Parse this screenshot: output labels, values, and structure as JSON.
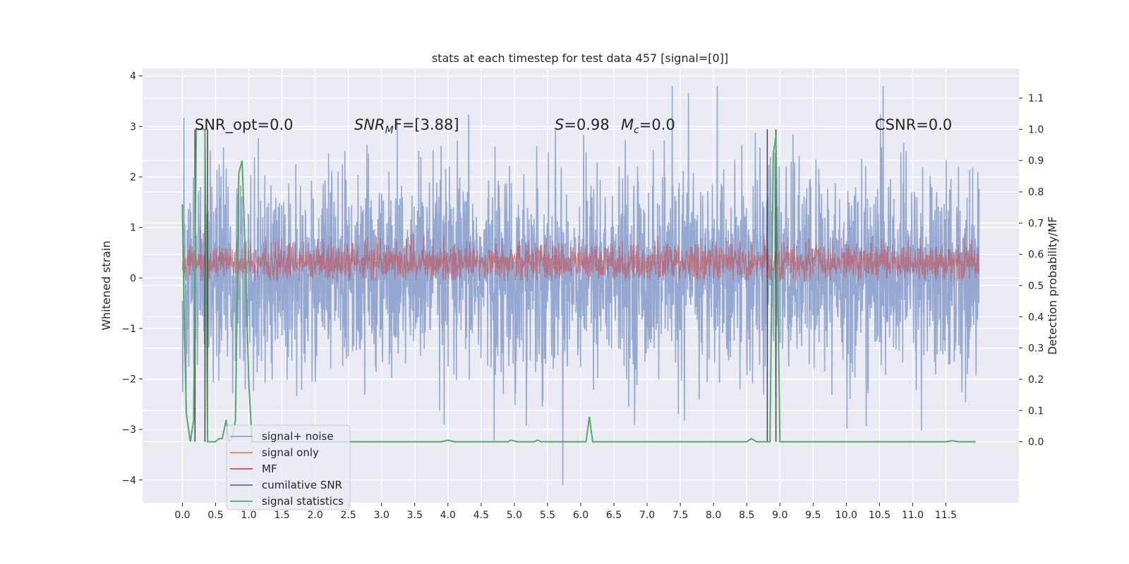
{
  "chart_data": {
    "type": "line",
    "title": "stats at each timestep for test data 457 [signal=[0]]",
    "xlabel": "",
    "ylabel": "Whitened strain",
    "y2label": "Detection probability/MF",
    "xlim": [
      -0.6,
      12.6
    ],
    "ylim": [
      -4.45,
      4.15
    ],
    "y2lim": [
      -0.195,
      1.195
    ],
    "x_ticks": [
      "0.0",
      "0.5",
      "1.0",
      "1.5",
      "2.0",
      "2.5",
      "3.0",
      "3.5",
      "4.0",
      "4.5",
      "5.0",
      "5.5",
      "6.0",
      "6.5",
      "7.0",
      "7.5",
      "8.0",
      "8.5",
      "9.0",
      "9.5",
      "10.0",
      "10.5",
      "11.0",
      "11.5"
    ],
    "y_ticks": [
      4,
      3,
      2,
      1,
      0,
      -1,
      -2,
      -3,
      -4
    ],
    "y_tick_labels": [
      "4",
      "3",
      "2",
      "1",
      "0",
      "−1",
      "−2",
      "−3",
      "−4"
    ],
    "y2_ticks": [
      1.1,
      1.0,
      0.9,
      0.8,
      0.7,
      0.6,
      0.5,
      0.4,
      0.3,
      0.2,
      0.1,
      0.0
    ],
    "y2_tick_labels": [
      "1.1",
      "1.0",
      "0.9",
      "0.8",
      "0.7",
      "0.6",
      "0.5",
      "0.4",
      "0.3",
      "0.2",
      "0.1",
      "0.0"
    ],
    "grid": true,
    "legend_position": "lower-left",
    "annotations": {
      "snr_opt": "SNR_opt=0.0",
      "snr_mf_sym": "SNR",
      "snr_mf_sub": "M",
      "snr_mf_rest": "F=[3.88]",
      "s_sym": "S",
      "s_rest": "=0.98",
      "mc_sym": "M",
      "mc_sub": "c",
      "mc_rest": "=0.0",
      "csnr": "CSNR=0.0"
    },
    "series": [
      {
        "name": "signal+ noise",
        "color": "#8fa4cf",
        "x_range": [
          0.0,
          12.0
        ],
        "y_range": [
          -4.1,
          3.8
        ],
        "style": "noise"
      },
      {
        "name": "signal only",
        "color": "#dd8452",
        "values": []
      },
      {
        "name": "MF",
        "color": "#c44e52",
        "x_range": [
          0.0,
          12.0
        ],
        "y_range": [
          -0.05,
          0.95
        ],
        "style": "mf"
      },
      {
        "name": "cumilative SNR",
        "color": "#4c72b0",
        "values": []
      },
      {
        "name": "signal statistics",
        "color": "#55a868",
        "axis": "right",
        "x": [
          0.0,
          0.02,
          0.06,
          0.12,
          0.17,
          0.21,
          0.24,
          0.27,
          0.31,
          0.34,
          0.38,
          0.42,
          0.45,
          0.5,
          0.55,
          0.6,
          0.66,
          0.7,
          0.75,
          0.8,
          0.85,
          0.9,
          0.95,
          1.0,
          1.05,
          1.1,
          1.2,
          1.5,
          2.0,
          2.5,
          3.0,
          3.5,
          3.9,
          4.0,
          4.1,
          4.5,
          4.9,
          4.95,
          5.05,
          5.3,
          5.35,
          5.4,
          6.0,
          6.08,
          6.13,
          6.18,
          6.5,
          7.0,
          7.5,
          8.0,
          8.5,
          8.57,
          8.65,
          8.8,
          8.85,
          8.9,
          8.94,
          9.0,
          9.5,
          10.0,
          10.5,
          11.0,
          11.5,
          11.6,
          11.7,
          11.95
        ],
        "y": [
          0.76,
          0.47,
          0.09,
          0.0,
          0.07,
          1.0,
          1.0,
          1.0,
          1.0,
          1.0,
          0.0,
          0.0,
          0.0,
          0.0,
          0.01,
          0.01,
          0.07,
          0.0,
          0.01,
          0.07,
          0.86,
          0.9,
          0.58,
          0.19,
          0.0,
          0.0,
          0.0,
          0.0,
          0.0,
          0.0,
          0.0,
          0.0,
          0.0,
          0.005,
          0.0,
          0.0,
          0.0,
          0.005,
          0.0,
          0.0,
          0.005,
          0.0,
          0.0,
          0.0,
          0.08,
          0.0,
          0.0,
          0.0,
          0.0,
          0.0,
          0.0,
          0.01,
          0.0,
          0.0,
          0.0,
          0.92,
          0.98,
          0.0,
          0.0,
          0.0,
          0.0,
          0.0,
          0.0,
          0.003,
          0.0,
          0.0
        ]
      }
    ],
    "vertical_markers": {
      "color": "#444444",
      "lines": [
        {
          "x": 0.19,
          "y_top": 1.0,
          "y_bottom": 0.0
        },
        {
          "x": 0.34,
          "y_top": 1.0,
          "y_bottom": 0.0
        },
        {
          "x": 0.38,
          "y_top": 1.0,
          "y_bottom": 0.0
        },
        {
          "x": 8.81,
          "y_top": 1.0,
          "y_bottom": 0.0
        },
        {
          "x": 8.94,
          "y_top": 1.0,
          "y_bottom": 0.0
        }
      ]
    }
  }
}
